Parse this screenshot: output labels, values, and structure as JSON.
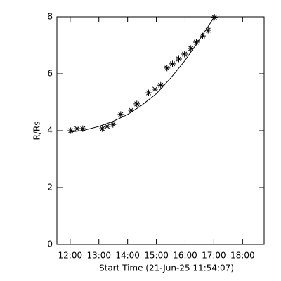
{
  "chart_data": {
    "type": "scatter",
    "x_label": "Start Time (21-Jun-25 11:54:07)",
    "y_label": "R/Rs",
    "xlim": [
      11.54,
      18.75
    ],
    "ylim": [
      0,
      8
    ],
    "xticks": [
      {
        "value": 12,
        "label": "12:00"
      },
      {
        "value": 13,
        "label": "13:00"
      },
      {
        "value": 14,
        "label": "14:00"
      },
      {
        "value": 15,
        "label": "15:00"
      },
      {
        "value": 16,
        "label": "16:00"
      },
      {
        "value": 17,
        "label": "17:00"
      },
      {
        "value": 18,
        "label": "18:00"
      }
    ],
    "yticks": [
      0,
      2,
      4,
      6,
      8
    ],
    "color": "#000000",
    "series": [
      {
        "style": "markers",
        "x": [
          12.02,
          12.24,
          12.44,
          13.12,
          13.29,
          13.49,
          13.76,
          14.12,
          14.32,
          14.73,
          14.95,
          15.15,
          15.37,
          15.56,
          15.78,
          15.98,
          16.2,
          16.39,
          16.61,
          16.8,
          17.02
        ],
        "values": [
          4.0,
          4.07,
          4.07,
          4.07,
          4.15,
          4.22,
          4.57,
          4.72,
          4.94,
          5.33,
          5.46,
          5.6,
          6.2,
          6.35,
          6.52,
          6.69,
          6.89,
          7.11,
          7.33,
          7.53,
          7.98
        ]
      },
      {
        "style": "line",
        "x": [
          12.02,
          12.5,
          13,
          13.5,
          14,
          14.5,
          15,
          15.5,
          16,
          16.5,
          17.02
        ],
        "values": [
          3.95,
          4.02,
          4.15,
          4.33,
          4.57,
          4.9,
          5.3,
          5.85,
          6.47,
          7.2,
          8.0
        ]
      }
    ]
  }
}
